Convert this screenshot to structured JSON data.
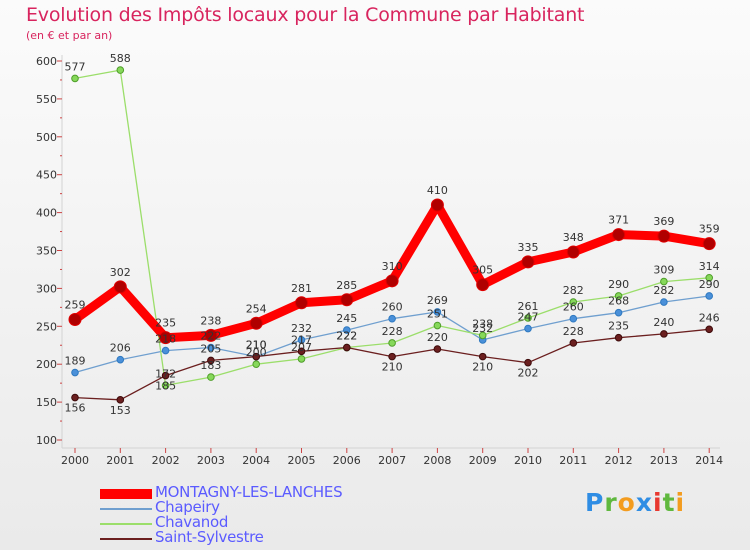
{
  "chart_data": {
    "type": "line",
    "title": "Evolution des Impôts locaux pour la Commune par Habitant",
    "subtitle": "(en € et par an)",
    "x": [
      "2000",
      "2001",
      "2002",
      "2003",
      "2004",
      "2005",
      "2006",
      "2007",
      "2008",
      "2009",
      "2010",
      "2011",
      "2012",
      "2013",
      "2014"
    ],
    "ylim": [
      100,
      600
    ],
    "yticks": [
      "100",
      "150",
      "200",
      "250",
      "300",
      "350",
      "400",
      "450",
      "500",
      "550",
      "600"
    ],
    "grid": false,
    "legend_position": "bottom-left",
    "series": [
      {
        "name": "MONTAGNY-LES-LANCHES",
        "color": "#ff0000",
        "values": [
          259,
          302,
          235,
          238,
          254,
          281,
          285,
          310,
          410,
          305,
          335,
          348,
          371,
          369,
          359
        ]
      },
      {
        "name": "Chapeiry",
        "color": "#6f9fcf",
        "values": [
          189,
          206,
          218,
          222,
          210,
          232,
          245,
          260,
          269,
          232,
          247,
          260,
          268,
          282,
          290
        ]
      },
      {
        "name": "Chavanod",
        "color": "#9bde6a",
        "values": [
          577,
          588,
          172,
          183,
          200,
          207,
          222,
          228,
          251,
          238,
          261,
          282,
          290,
          309,
          314
        ]
      },
      {
        "name": "Saint-Sylvestre",
        "color": "#6b1f1f",
        "values": [
          156,
          153,
          185,
          205,
          210,
          217,
          222,
          210,
          220,
          210,
          202,
          228,
          235,
          240,
          246
        ]
      }
    ],
    "point_labels": [
      [
        "259",
        "302",
        "235",
        "238",
        "254",
        "281",
        "285",
        "310",
        "410",
        "305",
        "335",
        "348",
        "371",
        "369",
        "359"
      ],
      [
        "189",
        "206",
        "218",
        "222",
        "210",
        "232",
        "245",
        "260",
        "269",
        "232",
        "247",
        "260",
        "268",
        "282",
        "290"
      ],
      [
        "577",
        "588",
        "172",
        "183",
        "200",
        "207",
        "222",
        "228",
        "251",
        "238",
        "261",
        "282",
        "290",
        "309",
        "314"
      ],
      [
        "156",
        "153",
        "185",
        "205",
        "210",
        "217",
        "222",
        "210",
        "220",
        "210",
        "202",
        "228",
        "235",
        "240",
        "246"
      ]
    ]
  },
  "logo_text": "Proxiti",
  "logo_letters": [
    "P",
    "r",
    "o",
    "x",
    "i",
    "t",
    "i"
  ]
}
